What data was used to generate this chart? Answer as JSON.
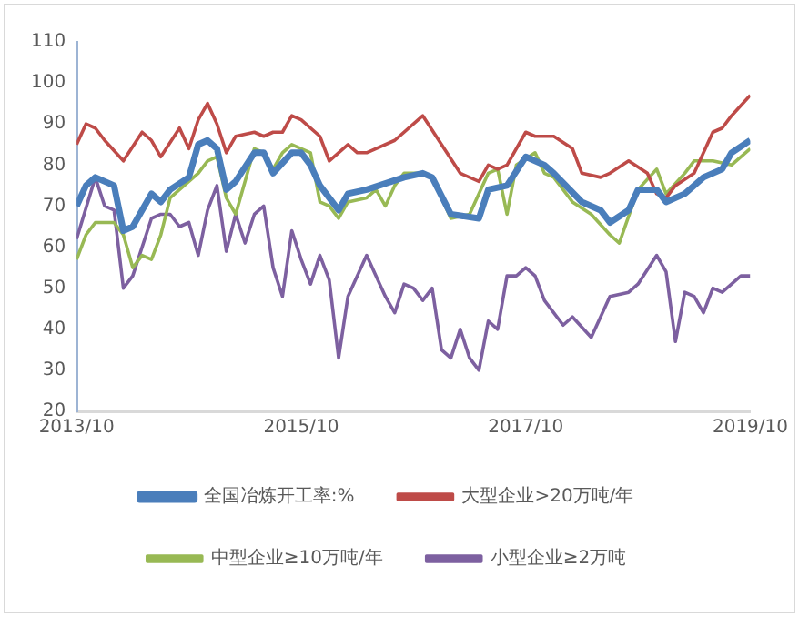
{
  "chart_data": {
    "type": "line",
    "xlim": [
      "2013-10",
      "2019-10"
    ],
    "xticks": [
      {
        "value": "2013-10",
        "label": "2013/10"
      },
      {
        "value": "2015-10",
        "label": "2015/10"
      },
      {
        "value": "2017-10",
        "label": "2017/10"
      },
      {
        "value": "2019-10",
        "label": "2019/10"
      }
    ],
    "ylim": [
      20,
      110
    ],
    "yticks": [
      20,
      30,
      40,
      50,
      60,
      70,
      80,
      90,
      100,
      110
    ],
    "grid": false,
    "legend": "bottom",
    "marker": "none",
    "line_style": "solid",
    "series": [
      {
        "name": "全国冶炼开工率:%",
        "color": "#4a7ebb",
        "x": [
          "2013-10",
          "2013-11",
          "2013-12",
          "2014-02",
          "2014-03",
          "2014-04",
          "2014-06",
          "2014-07",
          "2014-08",
          "2014-10",
          "2014-11",
          "2014-12",
          "2015-01",
          "2015-02",
          "2015-03",
          "2015-05",
          "2015-06",
          "2015-07",
          "2015-09",
          "2015-10",
          "2015-11",
          "2015-12",
          "2016-02",
          "2016-03",
          "2016-05",
          "2016-09",
          "2016-11",
          "2016-12",
          "2017-02",
          "2017-05",
          "2017-06",
          "2017-08",
          "2017-10",
          "2017-12",
          "2018-01",
          "2018-04",
          "2018-06",
          "2018-07",
          "2018-09",
          "2018-10",
          "2018-12",
          "2019-01",
          "2019-03",
          "2019-05",
          "2019-07",
          "2019-08",
          "2019-10"
        ],
        "values": [
          70,
          75,
          77,
          75,
          64,
          65,
          73,
          71,
          74,
          77,
          85,
          86,
          84,
          74,
          76,
          83,
          83,
          78,
          83,
          83,
          80,
          75,
          69,
          73,
          74,
          77,
          78,
          77,
          68,
          67,
          74,
          75,
          82,
          80,
          78,
          71,
          69,
          66,
          69,
          74,
          74,
          71,
          73,
          77,
          79,
          83,
          86
        ]
      },
      {
        "name": "大型企业>20万吨/年",
        "color": "#be4b48",
        "x": [
          "2013-10",
          "2013-11",
          "2013-12",
          "2014-01",
          "2014-03",
          "2014-05",
          "2014-06",
          "2014-07",
          "2014-09",
          "2014-10",
          "2014-11",
          "2014-12",
          "2015-01",
          "2015-02",
          "2015-03",
          "2015-05",
          "2015-06",
          "2015-07",
          "2015-08",
          "2015-09",
          "2015-10",
          "2015-12",
          "2016-01",
          "2016-03",
          "2016-04",
          "2016-05",
          "2016-08",
          "2016-11",
          "2017-01",
          "2017-03",
          "2017-05",
          "2017-06",
          "2017-07",
          "2017-08",
          "2017-10",
          "2017-11",
          "2018-01",
          "2018-03",
          "2018-04",
          "2018-06",
          "2018-07",
          "2018-09",
          "2018-11",
          "2018-12",
          "2019-01",
          "2019-02",
          "2019-04",
          "2019-05",
          "2019-06",
          "2019-07",
          "2019-08",
          "2019-10"
        ],
        "values": [
          85,
          90,
          89,
          86,
          81,
          88,
          86,
          82,
          89,
          84,
          91,
          95,
          90,
          83,
          87,
          88,
          87,
          88,
          88,
          92,
          91,
          87,
          81,
          85,
          83,
          83,
          86,
          92,
          85,
          78,
          76,
          80,
          79,
          80,
          88,
          87,
          87,
          84,
          78,
          77,
          78,
          81,
          78,
          73,
          72,
          75,
          78,
          83,
          88,
          89,
          92,
          97
        ]
      },
      {
        "name": "中型企业≥10万吨/年",
        "color": "#98b954",
        "x": [
          "2013-10",
          "2013-11",
          "2013-12",
          "2014-02",
          "2014-03",
          "2014-04",
          "2014-05",
          "2014-06",
          "2014-07",
          "2014-08",
          "2014-10",
          "2014-11",
          "2014-12",
          "2015-01",
          "2015-02",
          "2015-03",
          "2015-05",
          "2015-06",
          "2015-07",
          "2015-08",
          "2015-09",
          "2015-11",
          "2015-12",
          "2016-01",
          "2016-02",
          "2016-03",
          "2016-05",
          "2016-06",
          "2016-07",
          "2016-08",
          "2016-09",
          "2016-11",
          "2016-12",
          "2017-02",
          "2017-04",
          "2017-06",
          "2017-07",
          "2017-08",
          "2017-09",
          "2017-11",
          "2017-12",
          "2018-01",
          "2018-03",
          "2018-05",
          "2018-07",
          "2018-08",
          "2018-10",
          "2018-12",
          "2019-01",
          "2019-03",
          "2019-04",
          "2019-06",
          "2019-08",
          "2019-10"
        ],
        "values": [
          57,
          63,
          66,
          66,
          63,
          55,
          58,
          57,
          63,
          72,
          76,
          78,
          81,
          82,
          72,
          68,
          84,
          83,
          79,
          83,
          85,
          83,
          71,
          70,
          67,
          71,
          72,
          74,
          70,
          75,
          78,
          78,
          77,
          67,
          68,
          78,
          79,
          68,
          80,
          83,
          78,
          77,
          71,
          68,
          63,
          61,
          74,
          79,
          73,
          78,
          81,
          81,
          80,
          84
        ]
      },
      {
        "name": "小型企业≥2万吨",
        "color": "#7d60a0",
        "x": [
          "2013-10",
          "2013-12",
          "2014-01",
          "2014-02",
          "2014-03",
          "2014-04",
          "2014-06",
          "2014-07",
          "2014-08",
          "2014-09",
          "2014-10",
          "2014-11",
          "2014-12",
          "2015-01",
          "2015-02",
          "2015-03",
          "2015-04",
          "2015-05",
          "2015-06",
          "2015-07",
          "2015-08",
          "2015-09",
          "2015-10",
          "2015-11",
          "2015-12",
          "2016-01",
          "2016-02",
          "2016-03",
          "2016-05",
          "2016-06",
          "2016-07",
          "2016-08",
          "2016-09",
          "2016-10",
          "2016-11",
          "2016-12",
          "2017-01",
          "2017-02",
          "2017-03",
          "2017-04",
          "2017-05",
          "2017-06",
          "2017-07",
          "2017-08",
          "2017-09",
          "2017-10",
          "2017-11",
          "2017-12",
          "2018-02",
          "2018-03",
          "2018-05",
          "2018-07",
          "2018-09",
          "2018-10",
          "2018-12",
          "2019-01",
          "2019-02",
          "2019-03",
          "2019-04",
          "2019-05",
          "2019-06",
          "2019-07",
          "2019-09",
          "2019-10"
        ],
        "values": [
          62,
          77,
          70,
          69,
          50,
          53,
          67,
          68,
          68,
          65,
          66,
          58,
          69,
          75,
          59,
          68,
          61,
          68,
          70,
          55,
          48,
          64,
          57,
          51,
          58,
          52,
          33,
          48,
          58,
          53,
          48,
          44,
          51,
          50,
          47,
          50,
          35,
          33,
          40,
          33,
          30,
          42,
          40,
          53,
          53,
          55,
          53,
          47,
          41,
          43,
          38,
          48,
          49,
          51,
          58,
          54,
          37,
          49,
          48,
          44,
          50,
          49,
          53,
          53
        ]
      }
    ]
  }
}
